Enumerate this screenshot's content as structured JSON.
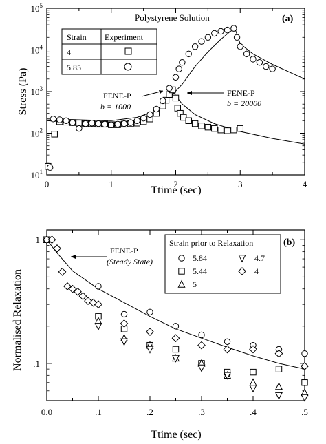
{
  "chart_data": [
    {
      "type": "scatter",
      "panel": "(a)",
      "title": "Polystyrene Solution",
      "xlabel": "Ttime (sec)",
      "ylabel": "Stress (Pa)",
      "xlim": [
        0,
        4
      ],
      "ylim": [
        10,
        100000
      ],
      "y_scale": "log",
      "x_ticks": [
        "0",
        "1",
        "2",
        "3",
        "4"
      ],
      "y_ticks": [
        {
          "base": "10",
          "exp": "5"
        },
        {
          "base": "10",
          "exp": "4"
        },
        {
          "base": "10",
          "exp": "3"
        },
        {
          "base": "10",
          "exp": "2"
        },
        {
          "base": "10",
          "exp": "1"
        }
      ],
      "legend": {
        "position": "top-left",
        "headers": [
          "Strain",
          "Experiment"
        ],
        "rows": [
          {
            "strain": "4",
            "marker": "square"
          },
          {
            "strain": "5.85",
            "marker": "circle"
          }
        ]
      },
      "annotations": [
        {
          "line1": "FENE-P",
          "line2": "b = 1000"
        },
        {
          "line1": "FENE-P",
          "line2": "b = 20000"
        }
      ],
      "series": [
        {
          "marker": "square",
          "strain": "4",
          "points": [
            [
              0.02,
              16
            ],
            [
              0.12,
              95
            ],
            [
              0.2,
              190
            ],
            [
              0.3,
              185
            ],
            [
              0.4,
              180
            ],
            [
              0.5,
              175
            ],
            [
              0.6,
              170
            ],
            [
              0.7,
              170
            ],
            [
              0.8,
              165
            ],
            [
              0.9,
              165
            ],
            [
              1.0,
              160
            ],
            [
              1.1,
              160
            ],
            [
              1.2,
              165
            ],
            [
              1.3,
              170
            ],
            [
              1.4,
              175
            ],
            [
              1.5,
              190
            ],
            [
              1.6,
              220
            ],
            [
              1.7,
              300
            ],
            [
              1.8,
              450
            ],
            [
              1.85,
              620
            ],
            [
              1.9,
              850
            ],
            [
              1.95,
              1100
            ],
            [
              2.0,
              700
            ],
            [
              2.03,
              400
            ],
            [
              2.07,
              300
            ],
            [
              2.12,
              240
            ],
            [
              2.2,
              200
            ],
            [
              2.3,
              170
            ],
            [
              2.4,
              150
            ],
            [
              2.5,
              140
            ],
            [
              2.6,
              130
            ],
            [
              2.7,
              120
            ],
            [
              2.8,
              115
            ],
            [
              2.9,
              120
            ],
            [
              3.0,
              130
            ]
          ]
        },
        {
          "marker": "circle",
          "strain": "5.85",
          "points": [
            [
              0.05,
              15
            ],
            [
              0.1,
              220
            ],
            [
              0.2,
              210
            ],
            [
              0.3,
              200
            ],
            [
              0.4,
              180
            ],
            [
              0.5,
              130
            ],
            [
              0.6,
              170
            ],
            [
              0.7,
              175
            ],
            [
              0.8,
              170
            ],
            [
              0.9,
              165
            ],
            [
              1.0,
              160
            ],
            [
              1.1,
              165
            ],
            [
              1.2,
              170
            ],
            [
              1.3,
              180
            ],
            [
              1.4,
              200
            ],
            [
              1.5,
              230
            ],
            [
              1.6,
              280
            ],
            [
              1.7,
              380
            ],
            [
              1.8,
              600
            ],
            [
              1.9,
              1200
            ],
            [
              2.0,
              2200
            ],
            [
              2.05,
              3500
            ],
            [
              2.1,
              5000
            ],
            [
              2.2,
              8000
            ],
            [
              2.3,
              12000
            ],
            [
              2.4,
              16000
            ],
            [
              2.5,
              20000
            ],
            [
              2.6,
              25000
            ],
            [
              2.7,
              28000
            ],
            [
              2.8,
              30000
            ],
            [
              2.9,
              33000
            ],
            [
              2.95,
              20000
            ],
            [
              3.0,
              12000
            ],
            [
              3.1,
              8000
            ],
            [
              3.2,
              6000
            ],
            [
              3.3,
              5000
            ],
            [
              3.4,
              4000
            ],
            [
              3.5,
              3500
            ]
          ]
        }
      ],
      "curves": [
        {
          "points": [
            [
              0,
              200
            ],
            [
              0.3,
              185
            ],
            [
              0.6,
              175
            ],
            [
              1.0,
              170
            ],
            [
              1.3,
              180
            ],
            [
              1.6,
              260
            ],
            [
              1.8,
              500
            ],
            [
              1.9,
              850
            ],
            [
              1.95,
              1100
            ],
            [
              2.0,
              800
            ],
            [
              2.1,
              500
            ],
            [
              2.3,
              280
            ],
            [
              2.6,
              170
            ],
            [
              3.0,
              110
            ],
            [
              3.5,
              75
            ],
            [
              4.0,
              55
            ]
          ]
        },
        {
          "points": [
            [
              0,
              220
            ],
            [
              0.5,
              210
            ],
            [
              1.0,
              200
            ],
            [
              1.4,
              240
            ],
            [
              1.7,
              350
            ],
            [
              1.9,
              700
            ],
            [
              2.1,
              1500
            ],
            [
              2.3,
              4000
            ],
            [
              2.5,
              9000
            ],
            [
              2.7,
              18000
            ],
            [
              2.85,
              28000
            ],
            [
              2.92,
              32000
            ],
            [
              3.0,
              14000
            ],
            [
              3.2,
              8000
            ],
            [
              3.5,
              4500
            ],
            [
              4.0,
              2000
            ]
          ]
        }
      ]
    },
    {
      "type": "scatter",
      "panel": "(b)",
      "xlabel": "Ttime (sec)",
      "ylabel": "Normalised Relaxation",
      "xlim": [
        0,
        0.5
      ],
      "ylim": [
        0.05,
        1.2
      ],
      "y_scale": "log",
      "x_ticks": [
        "0.0",
        ".1",
        ".2",
        ".3",
        ".4",
        ".5"
      ],
      "y_ticks": [
        "1",
        ".1"
      ],
      "legend": {
        "title": "Strain prior to Relaxation",
        "position": "top-right",
        "entries": [
          {
            "marker": "circle",
            "label": "5.84"
          },
          {
            "marker": "triangle-down",
            "label": "4.7"
          },
          {
            "marker": "square",
            "label": "5.44"
          },
          {
            "marker": "diamond",
            "label": "4"
          },
          {
            "marker": "triangle-up",
            "label": "5"
          }
        ]
      },
      "annotation": {
        "line1": "FENE-P",
        "line2": "(Steady State)"
      },
      "series": [
        {
          "marker": "circle",
          "points": [
            [
              0.0,
              1.0
            ],
            [
              0.1,
              0.42
            ],
            [
              0.15,
              0.25
            ],
            [
              0.2,
              0.26
            ],
            [
              0.25,
              0.2
            ],
            [
              0.3,
              0.17
            ],
            [
              0.35,
              0.15
            ],
            [
              0.4,
              0.14
            ],
            [
              0.45,
              0.13
            ],
            [
              0.5,
              0.12
            ]
          ]
        },
        {
          "marker": "square",
          "points": [
            [
              0.0,
              1.0
            ],
            [
              0.1,
              0.24
            ],
            [
              0.15,
              0.19
            ],
            [
              0.2,
              0.14
            ],
            [
              0.25,
              0.13
            ],
            [
              0.3,
              0.1
            ],
            [
              0.35,
              0.085
            ],
            [
              0.4,
              0.085
            ],
            [
              0.45,
              0.09
            ],
            [
              0.5,
              0.07
            ]
          ]
        },
        {
          "marker": "triangle-up",
          "points": [
            [
              0.0,
              1.0
            ],
            [
              0.1,
              0.22
            ],
            [
              0.15,
              0.16
            ],
            [
              0.2,
              0.14
            ],
            [
              0.25,
              0.11
            ],
            [
              0.3,
              0.1
            ],
            [
              0.35,
              0.08
            ],
            [
              0.4,
              0.07
            ],
            [
              0.45,
              0.065
            ],
            [
              0.5,
              0.058
            ]
          ]
        },
        {
          "marker": "triangle-down",
          "points": [
            [
              0.0,
              1.0
            ],
            [
              0.1,
              0.2
            ],
            [
              0.15,
              0.15
            ],
            [
              0.2,
              0.13
            ],
            [
              0.25,
              0.11
            ],
            [
              0.3,
              0.092
            ],
            [
              0.35,
              0.08
            ],
            [
              0.4,
              0.063
            ],
            [
              0.45,
              0.055
            ],
            [
              0.5,
              0.053
            ]
          ]
        },
        {
          "marker": "diamond",
          "points": [
            [
              0.0,
              1.0
            ],
            [
              0.01,
              1.0
            ],
            [
              0.02,
              0.85
            ],
            [
              0.03,
              0.55
            ],
            [
              0.04,
              0.42
            ],
            [
              0.05,
              0.4
            ],
            [
              0.06,
              0.38
            ],
            [
              0.07,
              0.35
            ],
            [
              0.08,
              0.32
            ],
            [
              0.09,
              0.31
            ],
            [
              0.1,
              0.3
            ],
            [
              0.15,
              0.21
            ],
            [
              0.2,
              0.18
            ],
            [
              0.25,
              0.16
            ],
            [
              0.3,
              0.14
            ],
            [
              0.35,
              0.13
            ],
            [
              0.4,
              0.13
            ],
            [
              0.45,
              0.12
            ],
            [
              0.5,
              0.095
            ]
          ]
        }
      ],
      "curve": {
        "points": [
          [
            0.0,
            1.0
          ],
          [
            0.02,
            0.78
          ],
          [
            0.05,
            0.56
          ],
          [
            0.1,
            0.4
          ],
          [
            0.15,
            0.31
          ],
          [
            0.2,
            0.24
          ],
          [
            0.25,
            0.19
          ],
          [
            0.3,
            0.16
          ],
          [
            0.35,
            0.135
          ],
          [
            0.4,
            0.115
          ],
          [
            0.45,
            0.1
          ],
          [
            0.5,
            0.09
          ]
        ]
      }
    }
  ]
}
